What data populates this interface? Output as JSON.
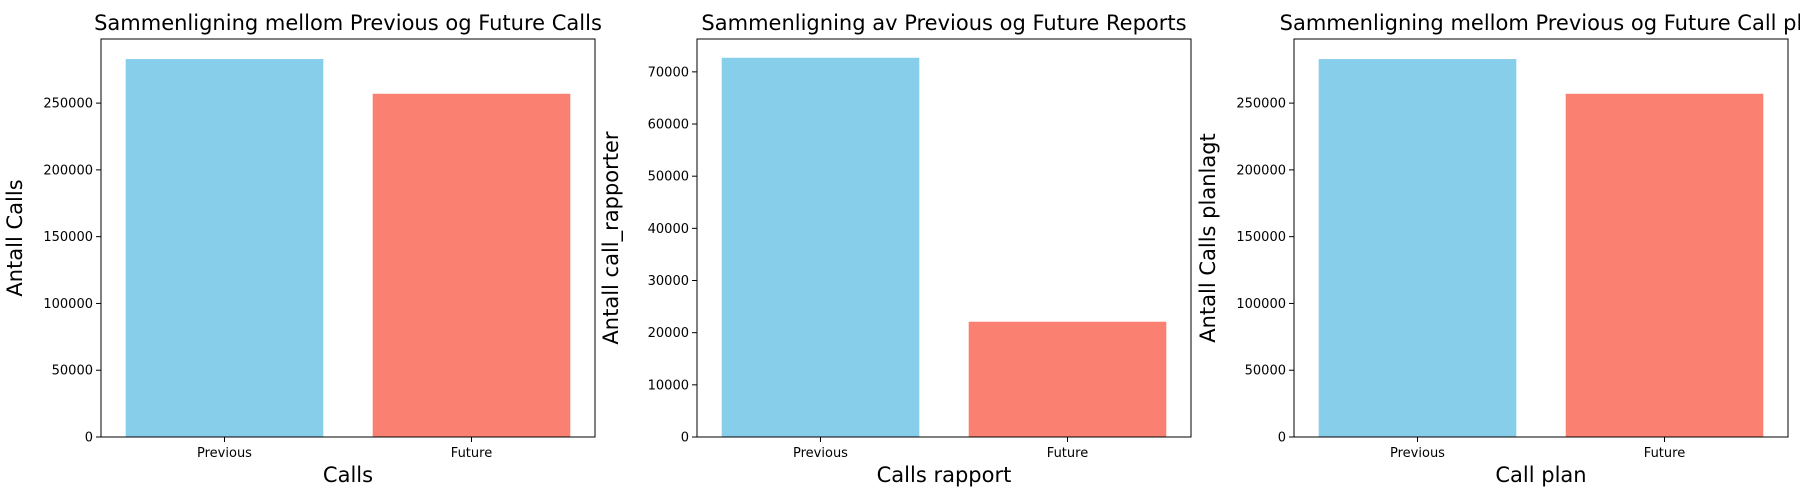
{
  "chart_data": [
    {
      "type": "bar",
      "title": "Sammenligning mellom Previous og Future Calls",
      "xlabel": "Calls",
      "ylabel": "Antall Calls",
      "categories": [
        "Previous",
        "Future"
      ],
      "values": [
        283000,
        257000
      ],
      "colors": [
        "#87CEEB",
        "#FA8072"
      ],
      "ylim": [
        0,
        298000
      ],
      "yticks": [
        0,
        50000,
        100000,
        150000,
        200000,
        250000
      ],
      "ytick_labels": [
        "0",
        "50000",
        "100000",
        "150000",
        "200000",
        "250000"
      ],
      "grid": false
    },
    {
      "type": "bar",
      "title": "Sammenligning av Previous og Future Reports",
      "xlabel": "Calls rapport",
      "ylabel": "Antall call_rapporter",
      "categories": [
        "Previous",
        "Future"
      ],
      "values": [
        72700,
        22100
      ],
      "colors": [
        "#87CEEB",
        "#FA8072"
      ],
      "ylim": [
        0,
        76300
      ],
      "yticks": [
        0,
        10000,
        20000,
        30000,
        40000,
        50000,
        60000,
        70000
      ],
      "ytick_labels": [
        "0",
        "10000",
        "20000",
        "30000",
        "40000",
        "50000",
        "60000",
        "70000"
      ],
      "grid": false
    },
    {
      "type": "bar",
      "title": "Sammenligning mellom Previous og Future Call pl",
      "xlabel": "Call plan",
      "ylabel": "Antall Calls planlagt",
      "categories": [
        "Previous",
        "Future"
      ],
      "values": [
        283000,
        257000
      ],
      "colors": [
        "#87CEEB",
        "#FA8072"
      ],
      "ylim": [
        0,
        298000
      ],
      "yticks": [
        0,
        50000,
        100000,
        150000,
        200000,
        250000
      ],
      "ytick_labels": [
        "0",
        "50000",
        "100000",
        "150000",
        "200000",
        "250000"
      ],
      "grid": false
    }
  ]
}
